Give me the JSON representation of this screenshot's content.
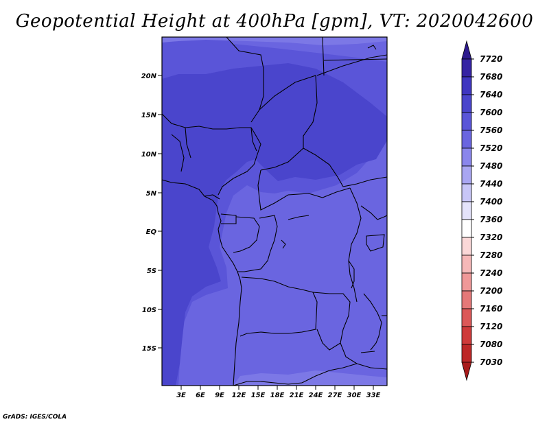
{
  "title": "Geopotential Height at 400hPa [gpm], VT: 2020042600",
  "credit": "GrADS: IGES/COLA",
  "map": {
    "lat_labels": [
      "20N",
      "15N",
      "10N",
      "5N",
      "EQ",
      "5S",
      "10S",
      "15S"
    ],
    "lon_labels": [
      "3E",
      "6E",
      "9E",
      "12E",
      "15E",
      "18E",
      "21E",
      "24E",
      "27E",
      "30E",
      "33E"
    ],
    "extent": {
      "lon_min": 0,
      "lon_max": 35,
      "lat_min": -20,
      "lat_max": 24.5
    }
  },
  "colorbar": {
    "levels": [
      "7720",
      "7680",
      "7640",
      "7600",
      "7560",
      "7520",
      "7480",
      "7440",
      "7400",
      "7360",
      "7320",
      "7280",
      "7240",
      "7200",
      "7160",
      "7120",
      "7080",
      "7030"
    ],
    "colors": [
      "#2d1a8e",
      "#3523a3",
      "#3f36c0",
      "#4a45cc",
      "#5a55d8",
      "#6a65e0",
      "#8a86ec",
      "#a9a6f2",
      "#c8c6f7",
      "#e4e3fb",
      "#ffffff",
      "#fbd8d8",
      "#f6b8b8",
      "#ef9898",
      "#e57878",
      "#dc5858",
      "#cf3a3a",
      "#bd2727",
      "#a81b1b"
    ]
  },
  "field_colors": {
    "zone_7640": "#4a45cc",
    "zone_7600": "#5a55d8",
    "zone_7560": "#6a65e0",
    "zone_7520": "#7c78e6"
  }
}
